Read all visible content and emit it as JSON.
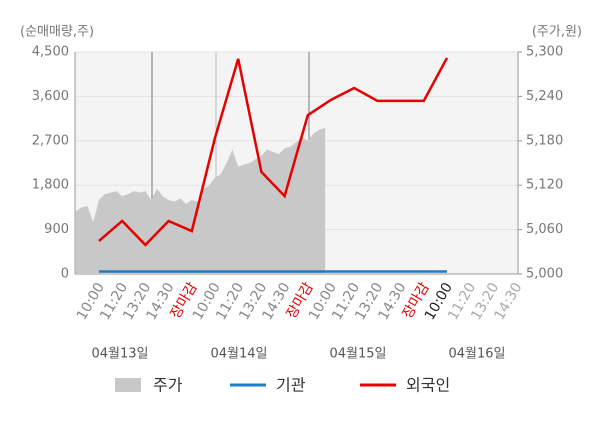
{
  "chart_data": {
    "type": "line",
    "y_label": "(순매매량,주)",
    "y2_label": "(주가,원)",
    "categories": [
      "10:00",
      "11:20",
      "13:20",
      "14:30",
      "장마감",
      "10:00",
      "11:20",
      "13:20",
      "14:30",
      "장마감",
      "10:00",
      "11:20",
      "13:20",
      "14:30",
      "장마감",
      "10:00",
      "11:20",
      "13:20",
      "14:30"
    ],
    "category_colors": [
      "#888888",
      "#888888",
      "#888888",
      "#888888",
      "#e60000",
      "#888888",
      "#888888",
      "#888888",
      "#888888",
      "#e60000",
      "#888888",
      "#888888",
      "#888888",
      "#888888",
      "#e60000",
      "#222222",
      "#aaaaaa",
      "#aaaaaa",
      "#aaaaaa"
    ],
    "dates": [
      "04월13일",
      "04월14일",
      "04월15일",
      "04월16일"
    ],
    "ylim": [
      0,
      4500
    ],
    "yticks": [
      0,
      900,
      {
        "value": 1800,
        "label": "1,800"
      },
      {
        "value": 2700,
        "label": "2,700"
      },
      {
        "value": 3600,
        "label": "3,600"
      },
      {
        "value": 4500,
        "label": "4,500"
      }
    ],
    "y2lim": [
      5000,
      5300
    ],
    "y2ticks": [
      {
        "value": 5000,
        "label": "5,000"
      },
      {
        "value": 5060,
        "label": "5,060"
      },
      {
        "value": 5120,
        "label": "5,120"
      },
      {
        "value": 5180,
        "label": "5,180"
      },
      {
        "value": 5240,
        "label": "5,240"
      },
      {
        "value": 5300,
        "label": "5,300"
      }
    ],
    "series": [
      {
        "name": "주가",
        "color": "#c8c8c8",
        "axis": "y2",
        "kind": "area",
        "x": [
          -1,
          -0.75,
          -0.5,
          -0.25,
          0,
          0.25,
          0.5,
          0.75,
          1,
          1.25,
          1.5,
          1.75,
          2,
          2.25,
          2.5,
          2.75,
          3,
          3.25,
          3.5,
          3.75,
          4,
          4.25,
          4.5,
          4.75,
          5,
          5.25,
          5.5,
          5.75,
          6,
          6.25,
          6.5,
          6.75,
          7,
          7.25,
          7.5,
          7.75,
          8,
          8.25,
          8.5,
          8.75,
          9,
          9.25,
          9.5,
          9.75
        ],
        "values": [
          5085,
          5090,
          5092,
          5070,
          5100,
          5108,
          5110,
          5112,
          5105,
          5108,
          5112,
          5110,
          5112,
          5100,
          5115,
          5105,
          5100,
          5098,
          5102,
          5095,
          5100,
          5098,
          5115,
          5120,
          5130,
          5135,
          5150,
          5168,
          5145,
          5148,
          5150,
          5155,
          5160,
          5168,
          5165,
          5162,
          5170,
          5172,
          5178,
          5185,
          5180,
          5190,
          5195,
          5198
        ]
      },
      {
        "name": "기관",
        "color": "#1f7fc4",
        "values": [
          50,
          50,
          50,
          50,
          50,
          50,
          50,
          50,
          50,
          50,
          50,
          50,
          50,
          50,
          50,
          50,
          null,
          null,
          null
        ]
      },
      {
        "name": "외국인",
        "color": "#e60000",
        "values": [
          670,
          1075,
          590,
          1075,
          870,
          2760,
          4360,
          2070,
          1580,
          3220,
          3530,
          3770,
          3510,
          3510,
          3510,
          4380,
          null,
          null,
          null
        ]
      }
    ]
  }
}
